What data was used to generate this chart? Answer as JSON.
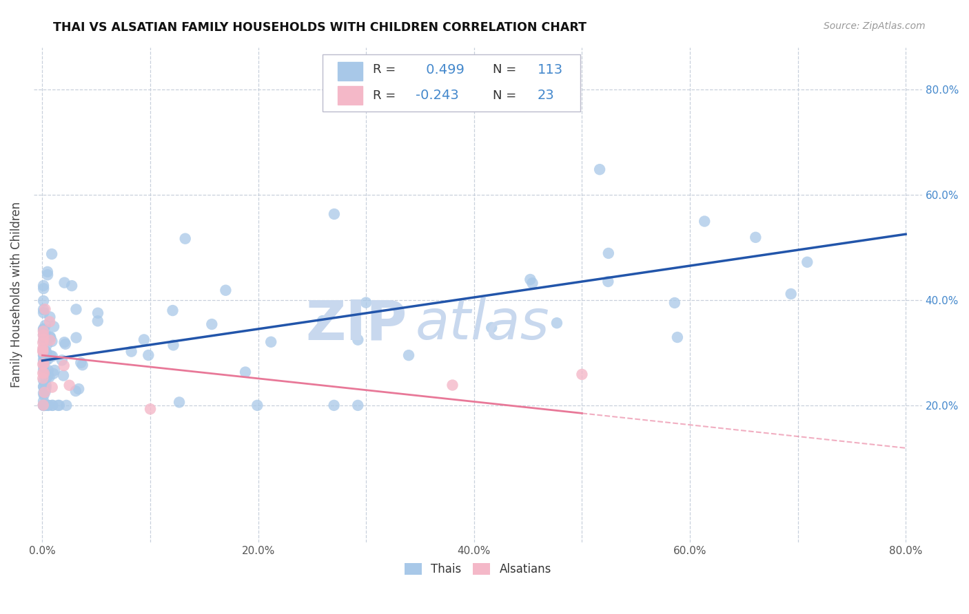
{
  "title": "THAI VS ALSATIAN FAMILY HOUSEHOLDS WITH CHILDREN CORRELATION CHART",
  "source": "Source: ZipAtlas.com",
  "ylabel": "Family Households with Children",
  "blue_R": 0.499,
  "blue_N": 113,
  "pink_R": -0.243,
  "pink_N": 23,
  "blue_color": "#a8c8e8",
  "pink_color": "#f4b8c8",
  "blue_line_color": "#2255aa",
  "pink_line_color": "#e87898",
  "label_color": "#4488cc",
  "watermark_zip_color": "#c8d8ee",
  "watermark_atlas_color": "#c8d8ee",
  "background_color": "#ffffff",
  "grid_color": "#c8d0dc",
  "blue_intercept": 0.285,
  "blue_slope": 0.3,
  "pink_intercept": 0.295,
  "pink_slope": -0.22
}
